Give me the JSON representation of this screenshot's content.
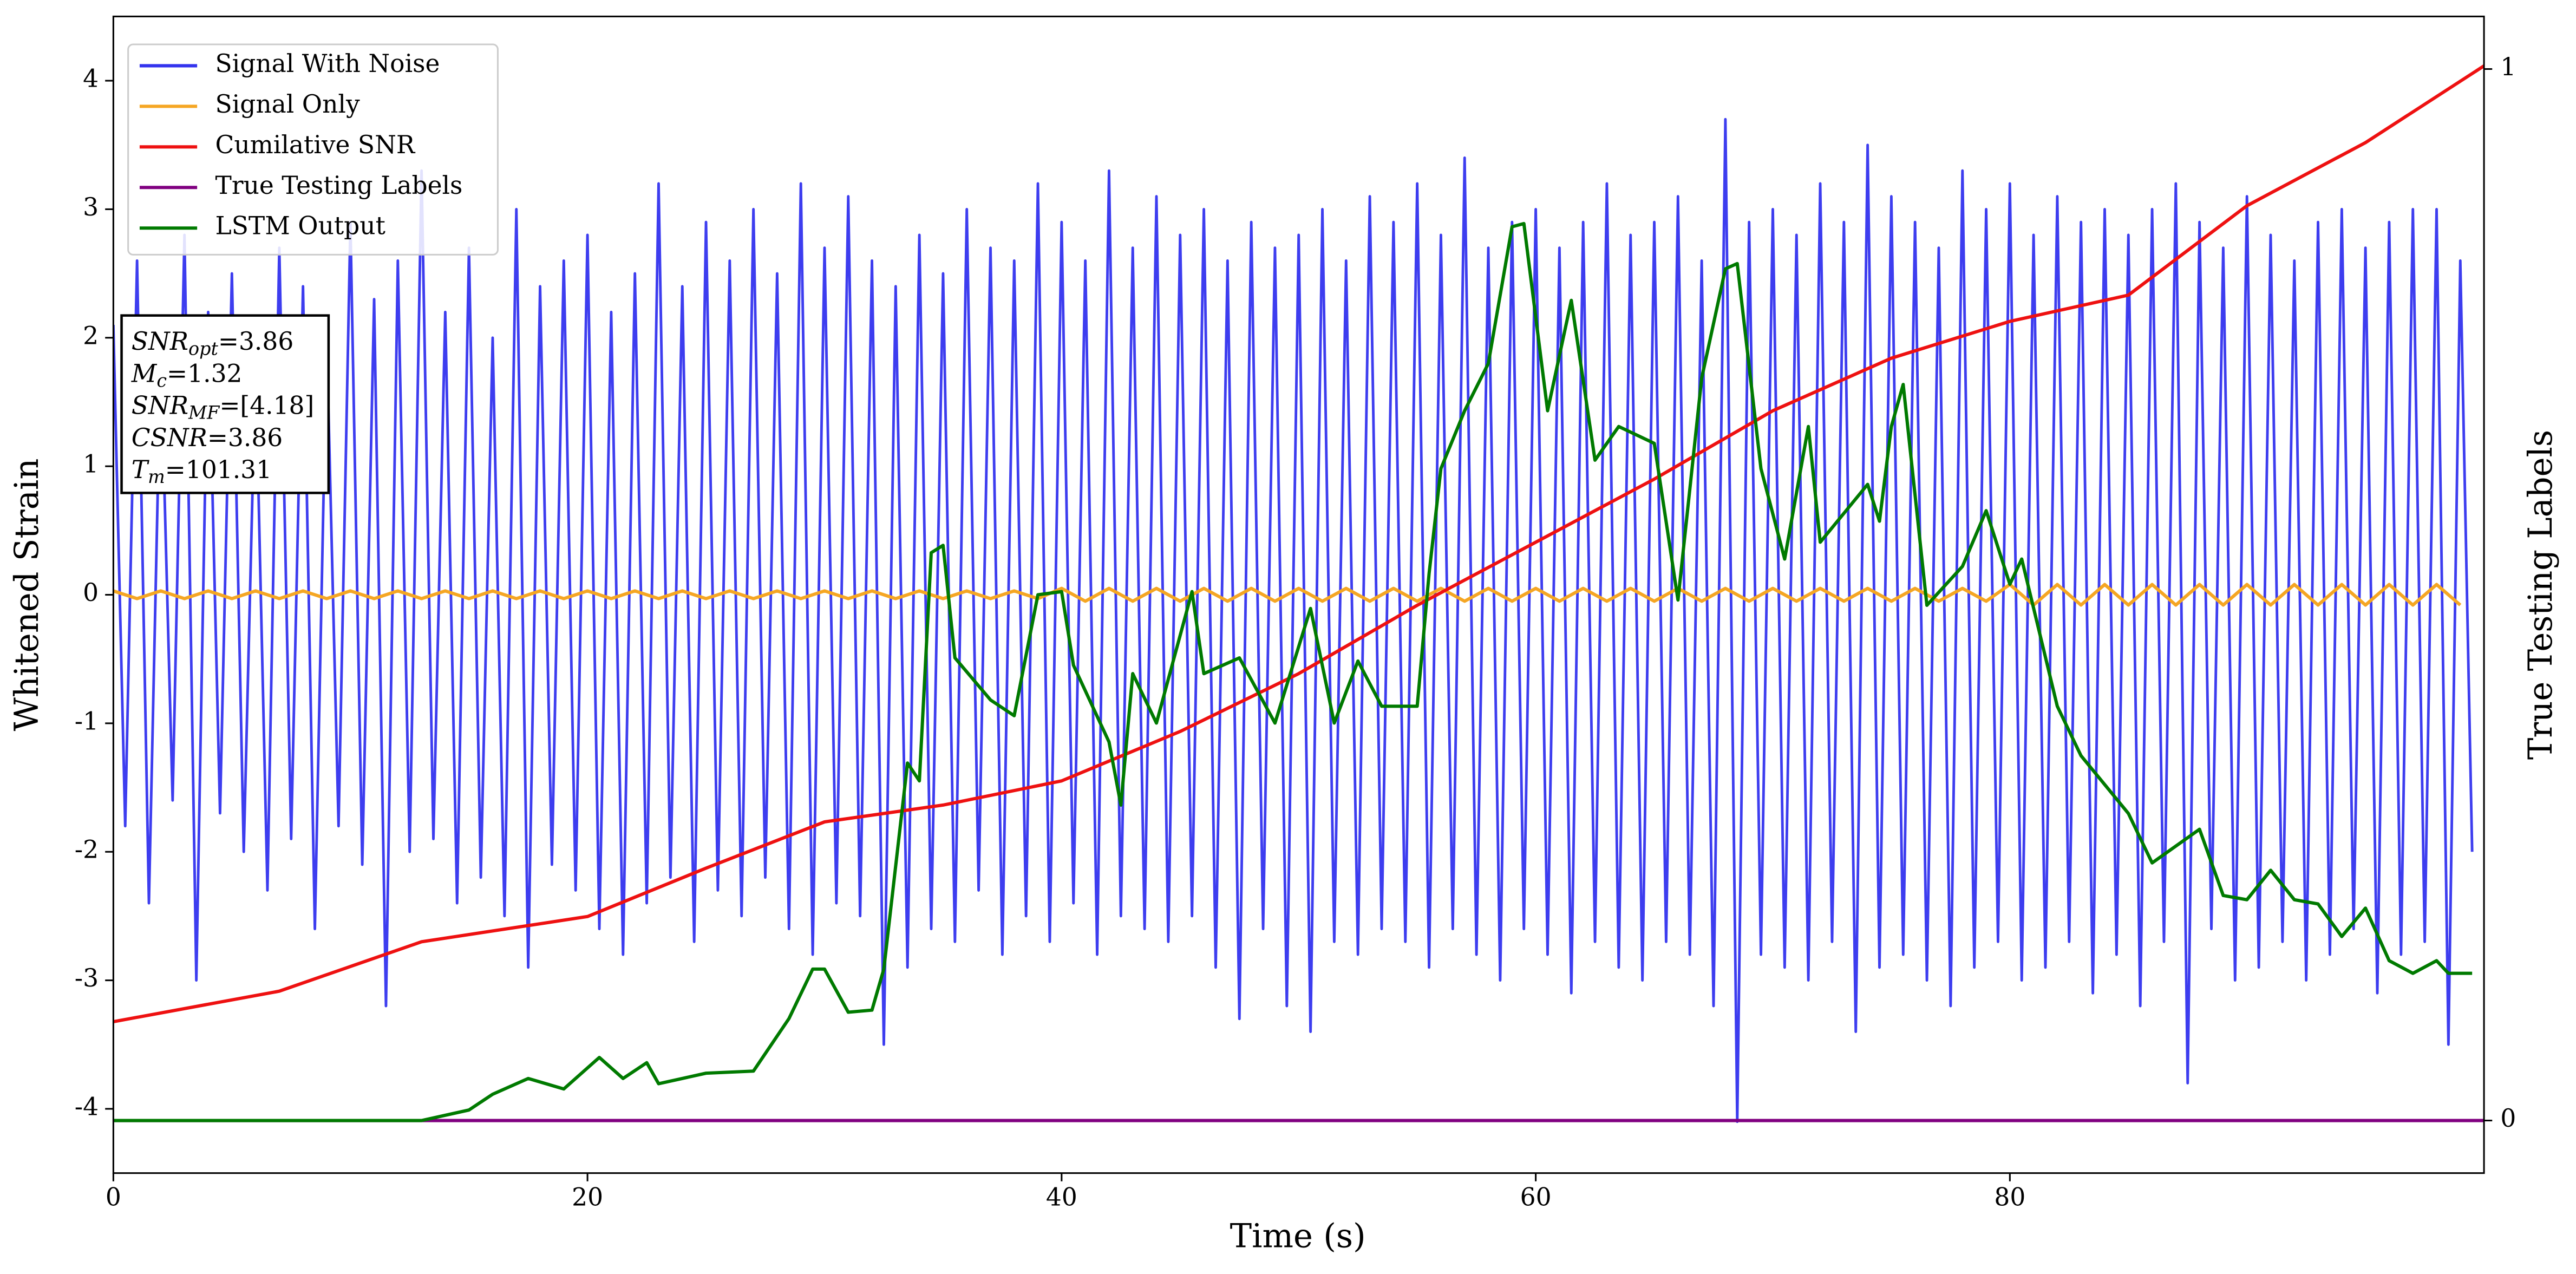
{
  "chart_data": {
    "type": "line",
    "xlabel": "Time (s)",
    "ylabel": "Whitened Strain",
    "y2label": "True Testing Labels",
    "xlim": [
      0,
      100
    ],
    "xticks": [
      0,
      20,
      40,
      60,
      80
    ],
    "ylim": [
      -4.5,
      4.5
    ],
    "yticks": [
      -4,
      -3,
      -2,
      -1,
      0,
      1,
      2,
      3,
      4
    ],
    "y2lim": [
      -0.05,
      1.05
    ],
    "y2ticks": [
      0,
      1
    ],
    "legend": "upper left",
    "annotations": [
      {
        "symbol": "SNR",
        "subscript": "opt",
        "text": "=3.86"
      },
      {
        "symbol": "M",
        "subscript": "c",
        "text": "=1.32"
      },
      {
        "symbol": "SNR",
        "subscript": "MF",
        "text": "=[4.18]"
      },
      {
        "symbol": "CSNR",
        "subscript": "",
        "text": "=3.86"
      },
      {
        "symbol": "T",
        "subscript": "m",
        "text": "=101.31"
      }
    ],
    "series": [
      {
        "name": "Signal With Noise",
        "color": "#3333ee",
        "x": [
          0,
          0.5,
          1,
          1.5,
          2,
          2.5,
          3,
          3.5,
          4,
          4.5,
          5,
          5.5,
          6,
          6.5,
          7,
          7.5,
          8,
          8.5,
          9,
          9.5,
          10,
          10.5,
          11,
          11.5,
          12,
          12.5,
          13,
          13.5,
          14,
          14.5,
          15,
          15.5,
          16,
          16.5,
          17,
          17.5,
          18,
          18.5,
          19,
          19.5,
          20,
          20.5,
          21,
          21.5,
          22,
          22.5,
          23,
          23.5,
          24,
          24.5,
          25,
          25.5,
          26,
          26.5,
          27,
          27.5,
          28,
          28.5,
          29,
          29.5,
          30,
          30.5,
          31,
          31.5,
          32,
          32.5,
          33,
          33.5,
          34,
          34.5,
          35,
          35.5,
          36,
          36.5,
          37,
          37.5,
          38,
          38.5,
          39,
          39.5,
          40,
          40.5,
          41,
          41.5,
          42,
          42.5,
          43,
          43.5,
          44,
          44.5,
          45,
          45.5,
          46,
          46.5,
          47,
          47.5,
          48,
          48.5,
          49,
          49.5,
          50,
          50.5,
          51,
          51.5,
          52,
          52.5,
          53,
          53.5,
          54,
          54.5,
          55,
          55.5,
          56,
          56.5,
          57,
          57.5,
          58,
          58.5,
          59,
          59.5,
          60,
          60.5,
          61,
          61.5,
          62,
          62.5,
          63,
          63.5,
          64,
          64.5,
          65,
          65.5,
          66,
          66.5,
          67,
          67.5,
          68,
          68.5,
          69,
          69.5,
          70,
          70.5,
          71,
          71.5,
          72,
          72.5,
          73,
          73.5,
          74,
          74.5,
          75,
          75.5,
          76,
          76.5,
          77,
          77.5,
          78,
          78.5,
          79,
          79.5,
          80,
          80.5,
          81,
          81.5,
          82,
          82.5,
          83,
          83.5,
          84,
          84.5,
          85,
          85.5,
          86,
          86.5,
          87,
          87.5,
          88,
          88.5,
          89,
          89.5,
          90,
          90.5,
          91,
          91.5,
          92,
          92.5,
          93,
          93.5,
          94,
          94.5,
          95,
          95.5,
          96,
          96.5,
          97,
          97.5,
          98,
          98.5,
          99,
          99.5
        ],
        "values": [
          2.1,
          -1.8,
          2.6,
          -2.4,
          1.9,
          -1.6,
          2.8,
          -3.0,
          2.2,
          -1.7,
          2.5,
          -2.0,
          1.8,
          -2.3,
          2.7,
          -1.9,
          2.4,
          -2.6,
          2.0,
          -1.8,
          2.9,
          -2.1,
          2.3,
          -3.2,
          2.6,
          -2.0,
          3.3,
          -1.9,
          2.2,
          -2.4,
          2.7,
          -2.2,
          2.0,
          -2.5,
          3.0,
          -2.9,
          2.4,
          -2.1,
          2.6,
          -2.3,
          2.8,
          -2.6,
          2.2,
          -2.8,
          2.5,
          -2.4,
          3.2,
          -2.2,
          2.4,
          -2.7,
          2.9,
          -2.3,
          2.6,
          -2.5,
          3.0,
          -2.2,
          2.5,
          -2.6,
          3.2,
          -2.8,
          2.7,
          -2.4,
          3.1,
          -2.5,
          2.6,
          -3.5,
          2.4,
          -2.9,
          2.8,
          -2.6,
          2.5,
          -2.7,
          3.0,
          -2.3,
          2.7,
          -2.8,
          2.6,
          -2.5,
          3.2,
          -2.7,
          2.9,
          -2.4,
          2.6,
          -2.8,
          3.3,
          -2.5,
          2.7,
          -2.6,
          3.1,
          -2.7,
          2.8,
          -2.5,
          3.0,
          -2.9,
          2.6,
          -3.3,
          2.9,
          -2.6,
          2.7,
          -3.2,
          2.8,
          -3.4,
          3.0,
          -2.7,
          2.6,
          -2.8,
          3.1,
          -2.6,
          2.9,
          -2.7,
          3.2,
          -2.9,
          2.8,
          -2.6,
          3.4,
          -2.8,
          2.7,
          -3.0,
          2.9,
          -2.6,
          3.0,
          -2.8,
          2.7,
          -3.1,
          2.9,
          -2.7,
          3.2,
          -2.9,
          2.8,
          -3.0,
          2.9,
          -2.7,
          3.1,
          -2.8,
          2.6,
          -3.2,
          3.7,
          -4.1,
          2.9,
          -2.8,
          3.0,
          -2.9,
          2.8,
          -3.0,
          3.2,
          -2.7,
          2.9,
          -3.4,
          3.5,
          -2.9,
          3.1,
          -2.8,
          2.9,
          -3.0,
          2.7,
          -3.2,
          3.3,
          -2.9,
          3.0,
          -2.7,
          3.2,
          -3.0,
          2.8,
          -2.9,
          3.1,
          -2.7,
          2.9,
          -3.1,
          3.0,
          -2.8,
          2.8,
          -3.2,
          3.0,
          -2.7,
          3.2,
          -3.8,
          2.9,
          -2.6,
          2.7,
          -3.0,
          3.1,
          -2.9,
          2.8,
          -2.7,
          2.6,
          -3.0,
          2.9,
          -2.8,
          3.0,
          -2.6,
          2.7,
          -3.1,
          2.9,
          -2.8,
          3.0,
          -2.7,
          3.0,
          -3.5,
          2.6,
          -2.0
        ]
      },
      {
        "name": "Signal Only",
        "color": "#f5a623",
        "x": [
          0,
          1,
          2,
          3,
          4,
          5,
          6,
          7,
          8,
          9,
          10,
          11,
          12,
          13,
          14,
          15,
          16,
          17,
          18,
          19,
          20,
          21,
          22,
          23,
          24,
          25,
          26,
          27,
          28,
          29,
          30,
          31,
          32,
          33,
          34,
          35,
          36,
          37,
          38,
          39,
          40,
          41,
          42,
          43,
          44,
          45,
          46,
          47,
          48,
          49,
          50,
          51,
          52,
          53,
          54,
          55,
          56,
          57,
          58,
          59,
          60,
          61,
          62,
          63,
          64,
          65,
          66,
          67,
          68,
          69,
          70,
          71,
          72,
          73,
          74,
          75,
          76,
          77,
          78,
          79,
          80,
          81,
          82,
          83,
          84,
          85,
          86,
          87,
          88,
          89,
          90,
          91,
          92,
          93,
          94,
          95,
          96,
          97,
          98,
          99
        ],
        "values": [
          0.03,
          -0.03,
          0.03,
          -0.03,
          0.03,
          -0.03,
          0.03,
          -0.03,
          0.03,
          -0.03,
          0.03,
          -0.03,
          0.03,
          -0.03,
          0.03,
          -0.03,
          0.03,
          -0.03,
          0.03,
          -0.03,
          0.03,
          -0.03,
          0.03,
          -0.03,
          0.03,
          -0.03,
          0.03,
          -0.03,
          0.03,
          -0.03,
          0.03,
          -0.03,
          0.03,
          -0.03,
          0.03,
          -0.03,
          0.03,
          -0.03,
          0.03,
          -0.03,
          0.05,
          -0.05,
          0.05,
          -0.05,
          0.05,
          -0.05,
          0.05,
          -0.05,
          0.05,
          -0.05,
          0.05,
          -0.05,
          0.05,
          -0.05,
          0.05,
          -0.05,
          0.05,
          -0.05,
          0.05,
          -0.05,
          0.05,
          -0.05,
          0.05,
          -0.05,
          0.05,
          -0.05,
          0.05,
          -0.05,
          0.05,
          -0.05,
          0.05,
          -0.05,
          0.05,
          -0.05,
          0.05,
          -0.05,
          0.05,
          -0.05,
          0.05,
          -0.05,
          0.08,
          -0.08,
          0.08,
          -0.08,
          0.08,
          -0.08,
          0.08,
          -0.08,
          0.08,
          -0.08,
          0.08,
          -0.08,
          0.08,
          -0.08,
          0.08,
          -0.08,
          0.08,
          -0.08,
          0.08,
          -0.08
        ]
      },
      {
        "name": "Cumilative SNR",
        "color": "#ee1111",
        "axis": "y2",
        "x": [
          0,
          7,
          13,
          20,
          25,
          30,
          35,
          40,
          45,
          50,
          55,
          60,
          65,
          70,
          75,
          80,
          85,
          90,
          95,
          100
        ],
        "values": [
          0.094,
          0.123,
          0.17,
          0.194,
          0.24,
          0.284,
          0.3,
          0.323,
          0.37,
          0.425,
          0.49,
          0.55,
          0.61,
          0.675,
          0.725,
          0.76,
          0.785,
          0.87,
          0.93,
          1.003
        ]
      },
      {
        "name": "True Testing Labels",
        "color": "#800080",
        "axis": "y2",
        "x": [
          0,
          100
        ],
        "values": [
          0,
          0
        ]
      },
      {
        "name": "LSTM Output",
        "color": "#007a00",
        "axis": "y2",
        "x": [
          0,
          13,
          15,
          16,
          17.5,
          19,
          20.5,
          21.5,
          22.5,
          23,
          25,
          27,
          28.5,
          29.5,
          30,
          31,
          32,
          32.5,
          33.5,
          34,
          34.5,
          35,
          35.5,
          37,
          38,
          39,
          40,
          40.5,
          42,
          42.5,
          43,
          44,
          45.5,
          46,
          47.5,
          49,
          50.5,
          51.5,
          52.5,
          53.5,
          55,
          55.5,
          56,
          57,
          58,
          59,
          59.5,
          60.5,
          61.5,
          62.5,
          63.5,
          65,
          66,
          67,
          68,
          68.5,
          69.5,
          70.5,
          71.5,
          72,
          74,
          74.5,
          75,
          75.5,
          76.5,
          78,
          79,
          80,
          80.5,
          82,
          83,
          85,
          86,
          88,
          89,
          90,
          91,
          92,
          93,
          94,
          95,
          96,
          97,
          98,
          98.5,
          99.5
        ],
        "values": [
          0,
          0,
          0.01,
          0.025,
          0.04,
          0.03,
          0.06,
          0.04,
          0.055,
          0.035,
          0.045,
          0.047,
          0.097,
          0.144,
          0.144,
          0.103,
          0.105,
          0.144,
          0.34,
          0.323,
          0.54,
          0.547,
          0.44,
          0.4,
          0.385,
          0.5,
          0.503,
          0.433,
          0.36,
          0.3,
          0.425,
          0.378,
          0.503,
          0.425,
          0.44,
          0.378,
          0.487,
          0.378,
          0.437,
          0.394,
          0.394,
          0.52,
          0.62,
          0.675,
          0.72,
          0.85,
          0.853,
          0.675,
          0.78,
          0.628,
          0.66,
          0.644,
          0.495,
          0.706,
          0.81,
          0.815,
          0.62,
          0.534,
          0.66,
          0.55,
          0.605,
          0.57,
          0.66,
          0.7,
          0.49,
          0.527,
          0.58,
          0.51,
          0.534,
          0.394,
          0.347,
          0.292,
          0.245,
          0.277,
          0.214,
          0.21,
          0.238,
          0.21,
          0.206,
          0.175,
          0.202,
          0.152,
          0.14,
          0.152,
          0.14,
          0.14
        ]
      }
    ]
  }
}
